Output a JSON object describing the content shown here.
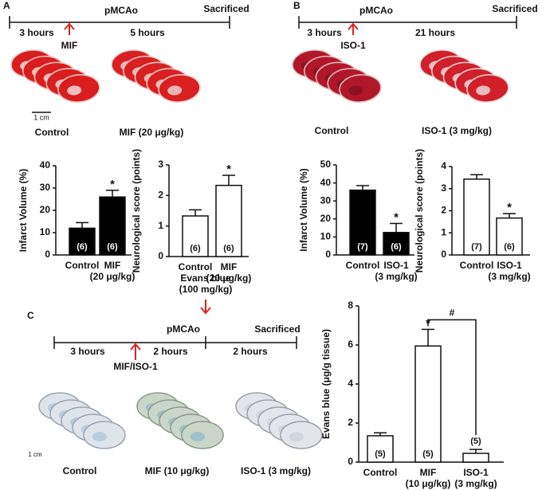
{
  "panels": {
    "A": {
      "label": "A",
      "event": "pMCAo",
      "end": "Sacrificed",
      "before": "3 hours",
      "after": "5 hours",
      "drug": "MIF",
      "scale": "1 cm",
      "photo_left": "Control",
      "photo_right": "MIF (20 μg/kg)"
    },
    "B": {
      "label": "B",
      "event": "pMCAo",
      "end": "Sacrificed",
      "before": "3 hours",
      "after": "21 hours",
      "drug": "ISO-1",
      "photo_left": "Control",
      "photo_right": "ISO-1 (3 mg/kg)"
    },
    "C": {
      "label": "C",
      "dye": "Evans blue (100 mg/kg)",
      "event": "pMCAo",
      "end": "Sacrificed",
      "first": "3 hours",
      "second": "2 hours",
      "third": "2 hours",
      "drug": "MIF/ISO-1",
      "scale": "1 cm",
      "photos": [
        "Control",
        "MIF (10 μg/kg)",
        "ISO-1 (3 mg/kg)"
      ]
    }
  },
  "chart_data": [
    {
      "type": "bar",
      "ylabel": "Infarct Volume (%)",
      "categories": [
        "Control",
        "MIF (20 μg/kg)"
      ],
      "values": [
        12,
        26
      ],
      "errors": [
        2.5,
        3
      ],
      "n_labels": [
        "(6)",
        "(6)"
      ],
      "annotations": [
        null,
        "*"
      ],
      "color": "#000000",
      "ylim": [
        0,
        40
      ],
      "yticks": [
        0,
        10,
        20,
        30,
        40
      ]
    },
    {
      "type": "bar",
      "ylabel": "Neurological score (points)",
      "categories": [
        "Control",
        "MIF (20 μg/kg)"
      ],
      "values": [
        1.33,
        2.33
      ],
      "errors": [
        0.2,
        0.33
      ],
      "n_labels": [
        "(6)",
        "(6)"
      ],
      "annotations": [
        null,
        "*"
      ],
      "color": "#ffffff",
      "ylim": [
        0,
        3
      ],
      "yticks": [
        0,
        1,
        2,
        3
      ]
    },
    {
      "type": "bar",
      "ylabel": "Infarct Volume (%)",
      "categories": [
        "Control",
        "ISO-1 (3 mg/kg)"
      ],
      "values": [
        36,
        12.5
      ],
      "errors": [
        2.5,
        5
      ],
      "n_labels": [
        "(7)",
        "(6)"
      ],
      "annotations": [
        null,
        "*"
      ],
      "color": "#000000",
      "ylim": [
        0,
        50
      ],
      "yticks": [
        0,
        10,
        20,
        30,
        40,
        50
      ]
    },
    {
      "type": "bar",
      "ylabel": "Neurological score (points)",
      "categories": [
        "Control",
        "ISO-1 (3 mg/kg)"
      ],
      "values": [
        3.43,
        1.67
      ],
      "errors": [
        0.2,
        0.2
      ],
      "n_labels": [
        "(7)",
        "(6)"
      ],
      "annotations": [
        null,
        "*"
      ],
      "color": "#ffffff",
      "ylim": [
        0,
        4
      ],
      "yticks": [
        0,
        1,
        2,
        3,
        4
      ]
    },
    {
      "type": "bar",
      "ylabel": "Evans blue (μg/g tissue)",
      "categories": [
        "Control",
        "MIF (10 μg/kg)",
        "ISO-1 (3 mg/kg)"
      ],
      "values": [
        1.35,
        5.95,
        0.45
      ],
      "errors": [
        0.15,
        0.85,
        0.2
      ],
      "n_labels": [
        "(5)",
        "(5)",
        "(5)"
      ],
      "annotations": [
        null,
        "*",
        null
      ],
      "bracket": {
        "categories": [
          "MIF (10 μg/kg)",
          "ISO-1 (3 mg/kg)"
        ],
        "label": "#"
      },
      "color": "#ffffff",
      "ylim": [
        0,
        8
      ],
      "yticks": [
        0,
        2,
        4,
        6,
        8
      ]
    }
  ]
}
